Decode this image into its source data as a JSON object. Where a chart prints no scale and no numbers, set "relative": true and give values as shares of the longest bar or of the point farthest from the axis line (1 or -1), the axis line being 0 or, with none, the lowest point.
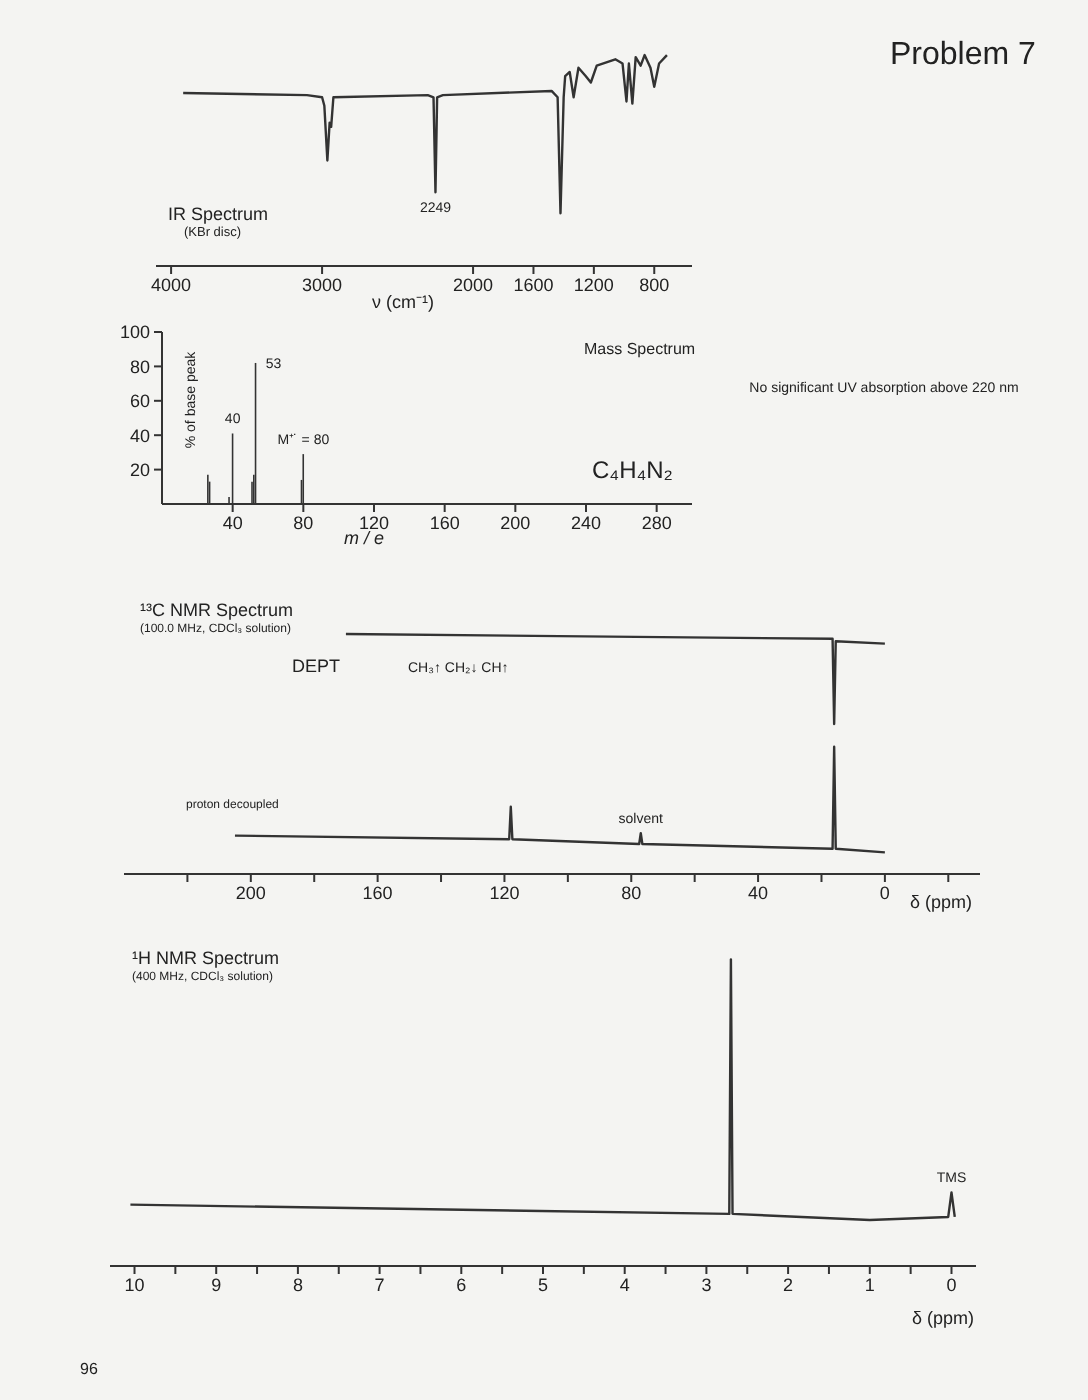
{
  "chart_data": [
    {
      "type": "line",
      "title": "IR Spectrum",
      "subtitle": "(KBr disc)",
      "xlabel": "ν (cm⁻¹)",
      "relative": true,
      "tick_labels": "x",
      "xlim": [
        4100,
        550
      ],
      "xticks": [
        4000,
        3000,
        2000,
        1600,
        1200,
        800
      ],
      "color": "#333333",
      "x": [
        3920,
        3100,
        3000,
        2985,
        2965,
        2950,
        2940,
        2925,
        2300,
        2262,
        2249,
        2238,
        2200,
        1480,
        1440,
        1421,
        1400,
        1390,
        1360,
        1334,
        1302,
        1253,
        1220,
        1181,
        1058,
        1010,
        984,
        968,
        945,
        923,
        890,
        864,
        825,
        800,
        768,
        716
      ],
      "values": [
        0.82,
        0.81,
        0.8,
        0.76,
        0.5,
        0.68,
        0.66,
        0.8,
        0.81,
        0.8,
        0.35,
        0.8,
        0.81,
        0.83,
        0.8,
        0.25,
        0.8,
        0.9,
        0.92,
        0.8,
        0.94,
        0.9,
        0.87,
        0.95,
        0.98,
        0.96,
        0.78,
        0.96,
        0.77,
        0.99,
        0.95,
        1,
        0.94,
        0.85,
        0.96,
        1
      ],
      "annotations": [
        {
          "text": "2249",
          "x": 2249,
          "y": 0.35
        }
      ]
    },
    {
      "type": "bar",
      "title": "Mass Spectrum",
      "xlabel": "m / e",
      "ylabel": "% of base peak",
      "xlim": [
        0,
        300
      ],
      "xticks": [
        40,
        80,
        120,
        160,
        200,
        240,
        280
      ],
      "ylim": [
        0,
        100
      ],
      "yticks": [
        20,
        40,
        60,
        80,
        100
      ],
      "color": "#333333",
      "x": [
        26,
        27,
        38,
        40,
        51,
        52,
        53,
        79,
        80
      ],
      "values": [
        17,
        13,
        4,
        41,
        13,
        17,
        82,
        14,
        29
      ],
      "annotations": [
        {
          "text": "40",
          "x": 40,
          "y": 41
        },
        {
          "text": "53",
          "x": 53,
          "y": 82
        },
        {
          "text": "M⁺˙ = 80",
          "x": 80,
          "y": 29
        },
        "C₄H₄N₂"
      ]
    },
    {
      "type": "line",
      "title": "¹³C NMR Spectrum",
      "subtitle": "(100.0 MHz, CDCl₃ solution)",
      "xlabel": "δ (ppm)",
      "relative": true,
      "tick_labels": "x",
      "xlim": [
        240,
        -30
      ],
      "xticks": [
        {
          "value": 220,
          "label": null
        },
        200,
        {
          "value": 180,
          "label": null
        },
        160,
        {
          "value": 140,
          "label": null
        },
        120,
        {
          "value": 100,
          "label": null
        },
        80,
        {
          "value": 60,
          "label": null
        },
        40,
        {
          "value": 20,
          "label": null
        },
        0,
        {
          "value": -20,
          "label": null
        }
      ],
      "series": [
        {
          "name": "DEPT",
          "color": "#333333",
          "x": [
            170,
            16.5,
            16,
            15.5,
            0
          ],
          "values": [
            1,
            0.98,
            0.625,
            0.97,
            0.96
          ]
        },
        {
          "name": "proton decoupled",
          "color": "#333333",
          "x": [
            205,
            118.5,
            118,
            117.5,
            77.5,
            77,
            76.5,
            16.5,
            16,
            15.5,
            0
          ],
          "values": [
            0.16,
            0.145,
            0.28,
            0.145,
            0.125,
            0.17,
            0.125,
            0.105,
            0.53,
            0.105,
            0.09
          ]
        }
      ],
      "annotations": [
        "CH₃↑ CH₂↓ CH↑",
        {
          "text": "solvent",
          "x": 77,
          "y": 0.17
        }
      ]
    },
    {
      "type": "line",
      "title": "¹H NMR Spectrum",
      "subtitle": "(400 MHz, CDCl₃ solution)",
      "xlabel": "δ (ppm)",
      "relative": true,
      "tick_labels": "x",
      "xlim": [
        10.3,
        -0.3
      ],
      "xticks": [
        10,
        {
          "value": 9.5,
          "label": null
        },
        9,
        {
          "value": 8.5,
          "label": null
        },
        8,
        {
          "value": 7.5,
          "label": null
        },
        7,
        {
          "value": 6.5,
          "label": null
        },
        6,
        {
          "value": 5.5,
          "label": null
        },
        5,
        {
          "value": 4.5,
          "label": null
        },
        4,
        {
          "value": 3.5,
          "label": null
        },
        3,
        {
          "value": 2.5,
          "label": null
        },
        2,
        {
          "value": 1.5,
          "label": null
        },
        1,
        {
          "value": 0.5,
          "label": null
        },
        0
      ],
      "color": "#333333",
      "x": [
        10.05,
        2.72,
        2.7,
        2.68,
        1,
        0.04,
        0,
        -0.04
      ],
      "values": [
        0.2,
        0.17,
        1,
        0.17,
        0.15,
        0.16,
        0.24,
        0.16
      ],
      "annotations": [
        {
          "text": "TMS",
          "x": 0,
          "y": 0.24
        }
      ]
    },
    {
      "type": "other",
      "title": "Problem 7",
      "annotations": [
        "No significant UV absorption above 220 nm",
        "96"
      ]
    }
  ]
}
